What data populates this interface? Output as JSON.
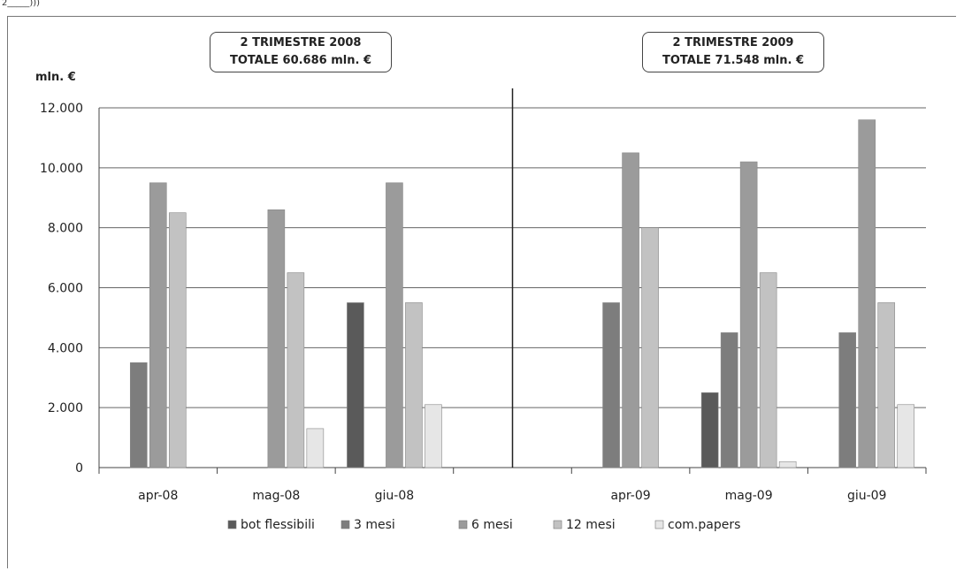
{
  "header_label": "2_____)))",
  "unit_label": "mln. €",
  "boxes": [
    {
      "line1": "2 TRIMESTRE 2008",
      "line2": "TOTALE 60.686 mln. €"
    },
    {
      "line1": "2 TRIMESTRE 2009",
      "line2": "TOTALE 71.548 mln. €"
    }
  ],
  "chart_data": {
    "type": "bar",
    "categories": [
      "apr-08",
      "mag-08",
      "giu-08",
      "apr-09",
      "mag-09",
      "giu-09"
    ],
    "ylim": [
      0,
      12000
    ],
    "yticks": [
      0,
      2000,
      4000,
      6000,
      8000,
      10000,
      12000
    ],
    "ytick_labels": [
      "0",
      "2.000",
      "4.000",
      "6.000",
      "8.000",
      "10.000",
      "12.000"
    ],
    "grid": true,
    "legend_position": "bottom",
    "series": [
      {
        "name": "bot flessibili",
        "color": "#5a5a5a",
        "values": [
          0,
          0,
          5500,
          0,
          2500,
          0
        ]
      },
      {
        "name": "3 mesi",
        "color": "#7d7d7d",
        "values": [
          3500,
          0,
          0,
          5500,
          4500,
          4500
        ]
      },
      {
        "name": "6 mesi",
        "color": "#9b9b9b",
        "values": [
          9500,
          8600,
          9500,
          10500,
          10200,
          11600
        ]
      },
      {
        "name": "12 mesi",
        "color": "#c2c2c2",
        "values": [
          8500,
          6500,
          5500,
          8000,
          6500,
          5500
        ]
      },
      {
        "name": "com.papers",
        "color": "#e6e6e6",
        "values": [
          0,
          1300,
          2100,
          0,
          200,
          2100
        ]
      }
    ]
  }
}
